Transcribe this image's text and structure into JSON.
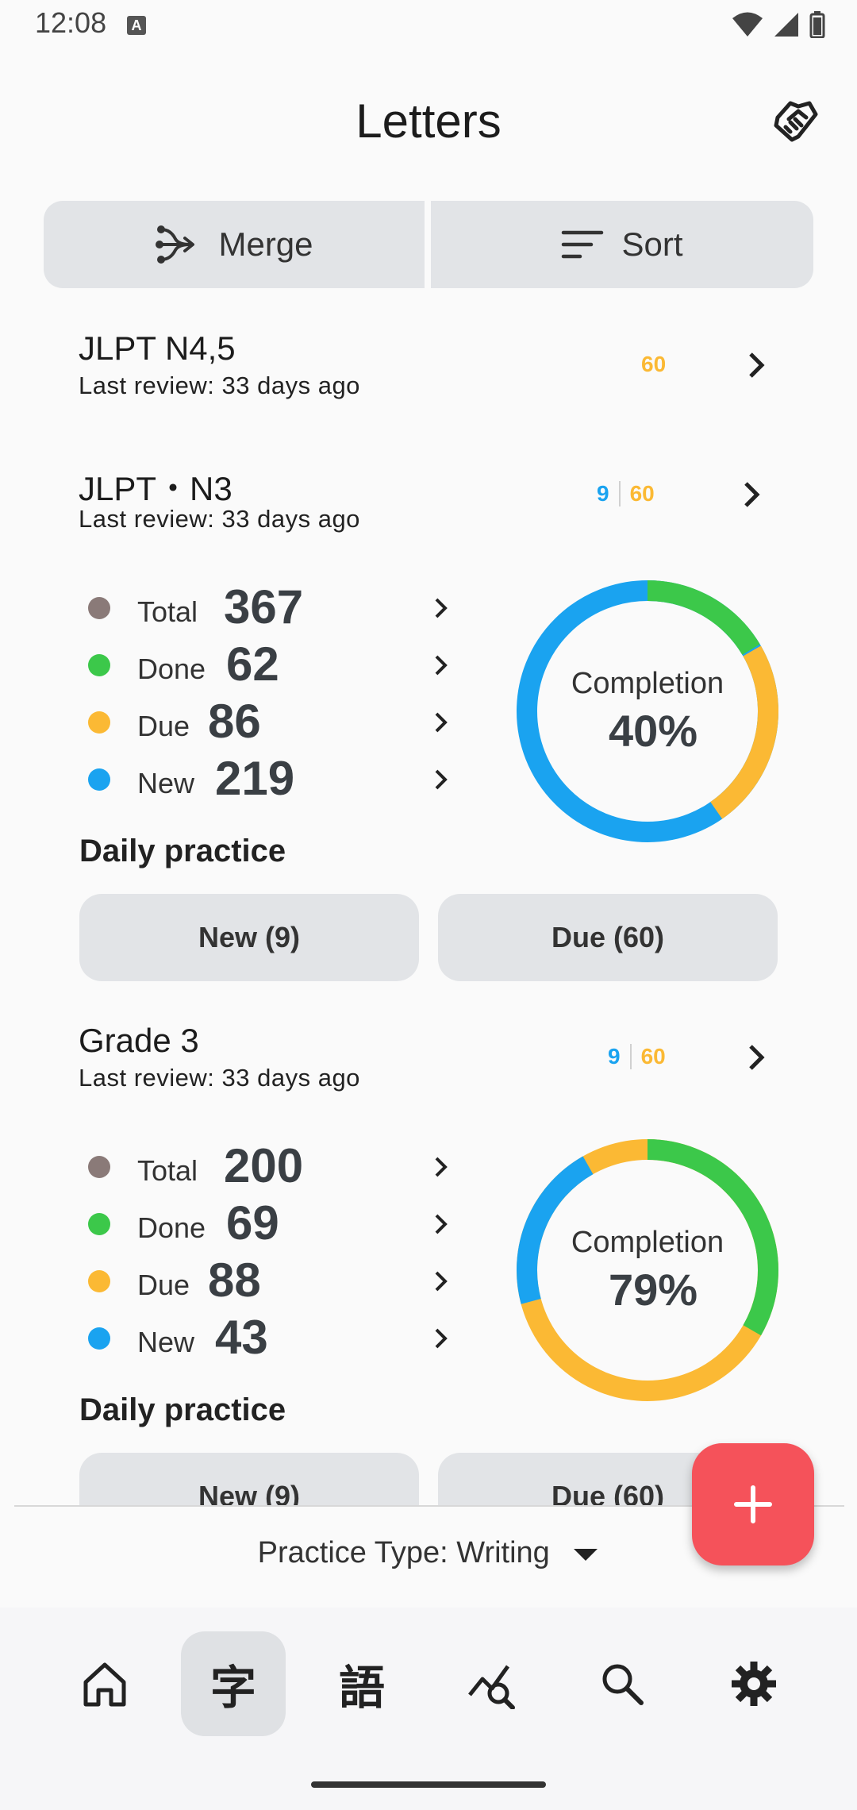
{
  "status": {
    "time": "12:08",
    "a_badge": "A"
  },
  "header": {
    "title": "Letters"
  },
  "toolbar": {
    "merge_label": "Merge",
    "sort_label": "Sort"
  },
  "decks": [
    {
      "title": "JLPT N4,5",
      "last_review": "Last review: 33 days ago",
      "due_count": "60"
    },
    {
      "title": "JLPT・N3",
      "last_review": "Last review: 33 days ago",
      "new_count": "9",
      "due_count": "60",
      "stats": {
        "total_label": "Total",
        "total": "367",
        "done_label": "Done",
        "done": "62",
        "due_label": "Due",
        "due": "86",
        "new_label": "New",
        "new": "219"
      },
      "completion_label": "Completion",
      "completion": "40%",
      "daily_practice": "Daily practice",
      "new_button": "New (9)",
      "due_button": "Due (60)"
    },
    {
      "title": "Grade 3",
      "last_review": "Last review: 33 days ago",
      "new_count": "9",
      "due_count": "60",
      "stats": {
        "total_label": "Total",
        "total": "200",
        "done_label": "Done",
        "done": "69",
        "due_label": "Due",
        "due": "88",
        "new_label": "New",
        "new": "43"
      },
      "completion_label": "Completion",
      "completion": "79%",
      "daily_practice": "Daily practice",
      "new_button": "New (9)",
      "due_button": "Due (60)"
    }
  ],
  "footer": {
    "practice_type": "Practice Type: Writing"
  },
  "nav": {
    "letters_glyph": "字",
    "words_glyph": "語"
  },
  "colors": {
    "total": "#8a7a78",
    "done": "#3cc84a",
    "due": "#fbb934",
    "new": "#1aa3f0",
    "fab": "#f5525a"
  },
  "icons": [
    "signal-icon",
    "wifi-icon",
    "battery-icon",
    "handshake-icon",
    "merge-icon",
    "sort-icon",
    "chevron-right-icon",
    "plus-icon",
    "home-icon",
    "stats-icon",
    "search-icon",
    "settings-icon",
    "dropdown-arrow-icon"
  ]
}
